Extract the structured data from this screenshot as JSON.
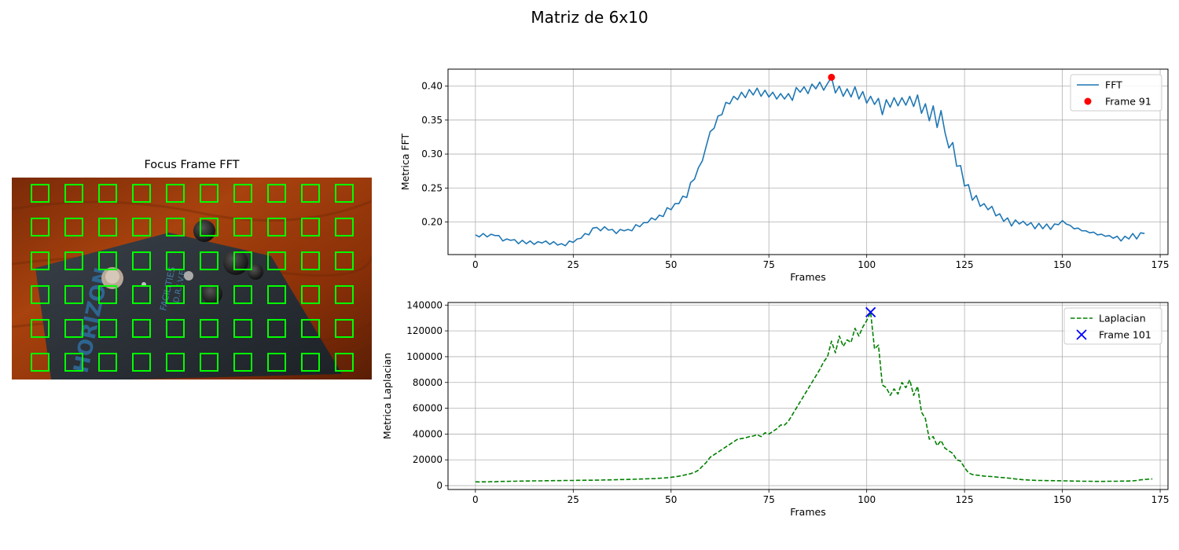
{
  "suptitle": "Matriz de 6x10",
  "image_panel": {
    "title": "Focus Frame FFT",
    "grid_rows": 6,
    "grid_cols": 10,
    "box_color": "#00ff00",
    "pedal_text": [
      "HORIZON",
      "FACILITIES",
      "D.R.I.V.E"
    ]
  },
  "chart_data": [
    {
      "type": "line",
      "xlabel": "Frames",
      "ylabel": "Metrica FFT",
      "xlim": [
        -7,
        177
      ],
      "ylim": [
        0.152,
        0.425
      ],
      "xticks": [
        0,
        25,
        50,
        75,
        100,
        125,
        150,
        175
      ],
      "yticks": [
        0.2,
        0.25,
        0.3,
        0.35,
        0.4
      ],
      "ytick_labels": [
        "0.20",
        "0.25",
        "0.30",
        "0.35",
        "0.40"
      ],
      "grid": true,
      "legend": "top-right",
      "series": [
        {
          "name": "FFT",
          "style": "solid",
          "color": "#1f77b4",
          "x_start": 0,
          "values": [
            0.181,
            0.178,
            0.183,
            0.178,
            0.182,
            0.18,
            0.18,
            0.172,
            0.175,
            0.173,
            0.174,
            0.168,
            0.173,
            0.168,
            0.172,
            0.167,
            0.171,
            0.169,
            0.172,
            0.167,
            0.171,
            0.166,
            0.168,
            0.165,
            0.172,
            0.17,
            0.175,
            0.176,
            0.183,
            0.181,
            0.191,
            0.192,
            0.187,
            0.193,
            0.188,
            0.189,
            0.183,
            0.189,
            0.187,
            0.189,
            0.187,
            0.196,
            0.193,
            0.199,
            0.199,
            0.206,
            0.203,
            0.21,
            0.208,
            0.221,
            0.218,
            0.227,
            0.227,
            0.238,
            0.236,
            0.258,
            0.263,
            0.28,
            0.29,
            0.312,
            0.333,
            0.338,
            0.356,
            0.358,
            0.376,
            0.374,
            0.385,
            0.38,
            0.391,
            0.383,
            0.395,
            0.387,
            0.397,
            0.385,
            0.394,
            0.384,
            0.391,
            0.381,
            0.389,
            0.381,
            0.389,
            0.379,
            0.398,
            0.391,
            0.399,
            0.389,
            0.403,
            0.396,
            0.406,
            0.394,
            0.404,
            0.413,
            0.39,
            0.4,
            0.385,
            0.396,
            0.384,
            0.399,
            0.381,
            0.392,
            0.375,
            0.385,
            0.373,
            0.382,
            0.358,
            0.38,
            0.369,
            0.383,
            0.371,
            0.383,
            0.372,
            0.385,
            0.37,
            0.387,
            0.36,
            0.374,
            0.349,
            0.371,
            0.339,
            0.364,
            0.332,
            0.309,
            0.317,
            0.282,
            0.283,
            0.253,
            0.255,
            0.232,
            0.239,
            0.223,
            0.227,
            0.218,
            0.223,
            0.209,
            0.212,
            0.201,
            0.206,
            0.194,
            0.203,
            0.197,
            0.201,
            0.195,
            0.199,
            0.19,
            0.198,
            0.19,
            0.197,
            0.189,
            0.197,
            0.196,
            0.202,
            0.197,
            0.195,
            0.19,
            0.191,
            0.187,
            0.187,
            0.184,
            0.185,
            0.181,
            0.182,
            0.179,
            0.18,
            0.176,
            0.179,
            0.172,
            0.179,
            0.175,
            0.183,
            0.175,
            0.184,
            0.183
          ]
        }
      ],
      "marker": {
        "name": "Frame 91",
        "x": 91,
        "y": 0.413,
        "shape": "circle",
        "color": "#ff0000"
      }
    },
    {
      "type": "line",
      "xlabel": "Frames",
      "ylabel": "Metrica Laplacian",
      "xlim": [
        -7,
        177
      ],
      "ylim": [
        -3000,
        142000
      ],
      "xticks": [
        0,
        25,
        50,
        75,
        100,
        125,
        150,
        175
      ],
      "yticks": [
        0,
        20000,
        40000,
        60000,
        80000,
        100000,
        120000,
        140000
      ],
      "ytick_labels": [
        "0",
        "20000",
        "40000",
        "60000",
        "80000",
        "100000",
        "120000",
        "140000"
      ],
      "grid": true,
      "legend": "top-right",
      "series": [
        {
          "name": "Laplacian",
          "style": "dashed",
          "color": "#008000",
          "x_start": 0,
          "values": [
            3000,
            2800,
            3000,
            2900,
            3100,
            3000,
            3200,
            3300,
            3300,
            3400,
            3400,
            3500,
            3500,
            3600,
            3600,
            3700,
            3700,
            3700,
            3800,
            3800,
            3900,
            3900,
            3900,
            4000,
            4000,
            4000,
            4100,
            4100,
            4200,
            4200,
            4200,
            4300,
            4300,
            4400,
            4400,
            4500,
            4600,
            4700,
            4700,
            4800,
            4900,
            5000,
            5100,
            5200,
            5300,
            5400,
            5500,
            5700,
            5900,
            6100,
            6500,
            6800,
            7300,
            7900,
            8600,
            9300,
            10300,
            12000,
            15000,
            18000,
            22000,
            24000,
            26000,
            28000,
            30000,
            32000,
            34000,
            36000,
            36500,
            37000,
            38000,
            38500,
            39500,
            38000,
            41000,
            40000,
            42000,
            44000,
            47000,
            47000,
            50000,
            55000,
            60000,
            65000,
            70000,
            75000,
            80000,
            85000,
            90000,
            96000,
            100000,
            112000,
            103000,
            116000,
            108000,
            113000,
            111000,
            122000,
            116000,
            123000,
            128000,
            134500,
            106000,
            109000,
            78000,
            76000,
            70000,
            75000,
            71000,
            80000,
            76000,
            82000,
            70000,
            77000,
            57000,
            52000,
            36000,
            38000,
            31000,
            35000,
            29000,
            27000,
            25000,
            20000,
            19000,
            14000,
            10000,
            8600,
            8200,
            7800,
            7400,
            7200,
            7000,
            6700,
            6400,
            6200,
            5900,
            5600,
            5200,
            4900,
            4600,
            4400,
            4200,
            4100,
            4000,
            4000,
            3900,
            3900,
            3800,
            3800,
            3700,
            3700,
            3600,
            3500,
            3500,
            3400,
            3400,
            3400,
            3300,
            3300,
            3300,
            3300,
            3400,
            3400,
            3400,
            3500,
            3500,
            3600,
            3700,
            4000,
            4500,
            4800,
            5000,
            5200
          ]
        }
      ],
      "marker": {
        "name": "Frame 101",
        "x": 101,
        "y": 134500,
        "shape": "x",
        "color": "#0000ff"
      }
    }
  ]
}
